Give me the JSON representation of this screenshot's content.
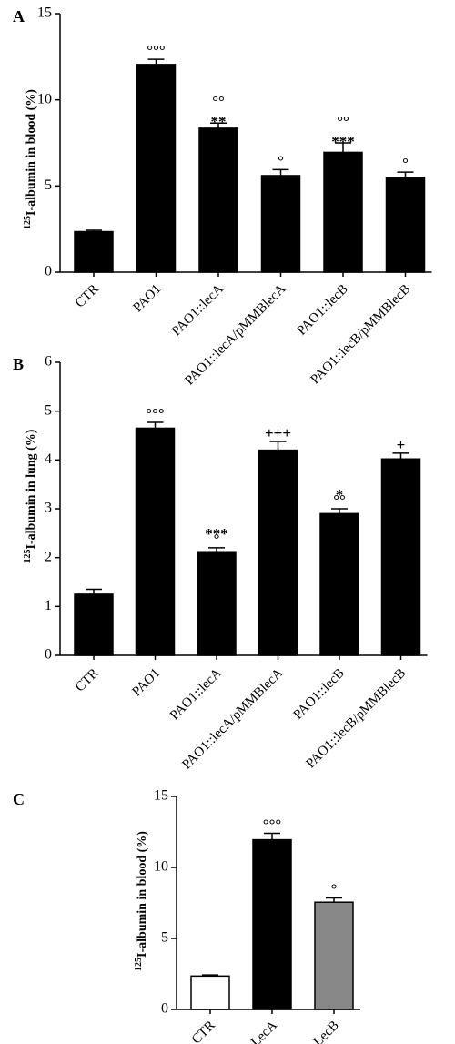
{
  "chart_data": [
    {
      "type": "bar",
      "panel_label": "A",
      "ylabel_sup": "125",
      "ylabel": "I-albumin in blood (%)",
      "categories": [
        "CTR",
        "PAO1",
        "PAO1::lecA",
        "PAO1::lecA/pMMBlecA",
        "PAO1::lecB",
        "PAO1::lecB/pMMBlecB"
      ],
      "values": [
        2.35,
        12.05,
        8.35,
        5.6,
        6.95,
        5.5
      ],
      "errors": [
        0.08,
        0.3,
        0.3,
        0.35,
        0.55,
        0.3
      ],
      "annotations_top": [
        "",
        "°°°",
        "°°",
        "°",
        "°°",
        "°"
      ],
      "annotations_bottom": [
        "",
        "",
        "**",
        "",
        "***",
        ""
      ],
      "bar_colors": [
        "#000000",
        "#000000",
        "#000000",
        "#000000",
        "#000000",
        "#000000"
      ],
      "ylim": [
        0,
        15
      ],
      "yticks": [
        0,
        5,
        10,
        15
      ],
      "ytick_labels": [
        "0",
        "5",
        "10",
        "15"
      ]
    },
    {
      "type": "bar",
      "panel_label": "B",
      "ylabel_sup": "125",
      "ylabel": "I-albumin in lung (%)",
      "categories": [
        "CTR",
        "PAO1",
        "PAO1::lecA",
        "PAO1::lecA/pMMBlecA",
        "PAO1::lecB",
        "PAO1::lecB/pMMBlecB"
      ],
      "values": [
        1.25,
        4.65,
        2.12,
        4.2,
        2.9,
        4.02
      ],
      "errors": [
        0.1,
        0.12,
        0.08,
        0.18,
        0.1,
        0.12
      ],
      "annotations_top": [
        "",
        "°°°",
        "***",
        "+++",
        "*",
        "+"
      ],
      "annotations_bottom": [
        "",
        "",
        "°",
        "",
        "°°",
        ""
      ],
      "bar_colors": [
        "#000000",
        "#000000",
        "#000000",
        "#000000",
        "#000000",
        "#000000"
      ],
      "ylim": [
        0,
        6
      ],
      "yticks": [
        0,
        1,
        2,
        3,
        4,
        5,
        6
      ],
      "ytick_labels": [
        "0",
        "1",
        "2",
        "3",
        "4",
        "5",
        "6"
      ]
    },
    {
      "type": "bar",
      "panel_label": "C",
      "ylabel_sup": "125",
      "ylabel": "I-albumin in blood (%)",
      "categories": [
        "CTR",
        "LecA",
        "LecB"
      ],
      "values": [
        2.35,
        11.95,
        7.55
      ],
      "errors": [
        0.08,
        0.45,
        0.3
      ],
      "annotations_top": [
        "",
        "°°°",
        "°"
      ],
      "annotations_bottom": [
        "",
        "",
        ""
      ],
      "bar_colors": [
        "#ffffff",
        "#000000",
        "#888888"
      ],
      "ylim": [
        0,
        15
      ],
      "yticks": [
        0,
        5,
        10,
        15
      ],
      "ytick_labels": [
        "0",
        "5",
        "10",
        "15"
      ]
    }
  ]
}
